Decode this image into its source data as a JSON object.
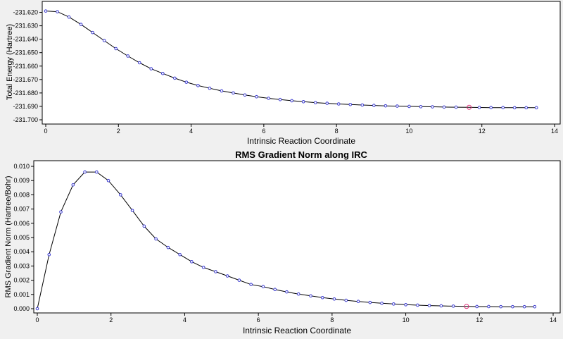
{
  "window": {
    "background": "#f0f0f0"
  },
  "chart_data": [
    {
      "type": "line",
      "title": "",
      "xlabel": "Intrinsic Reaction Coordinate",
      "ylabel": "Total Energy (Hartree)",
      "xlim": [
        0,
        14
      ],
      "ylim": [
        -231.7,
        -231.615
      ],
      "xticks": [
        0,
        2,
        4,
        6,
        8,
        10,
        12,
        14
      ],
      "xtick_labels": [
        "0",
        "2",
        "4",
        "6",
        "8",
        "10",
        "12",
        "14"
      ],
      "yticks": [
        -231.62,
        -231.63,
        -231.64,
        -231.65,
        -231.66,
        -231.67,
        -231.68,
        -231.69,
        -231.7
      ],
      "ytick_labels": [
        "-231.620",
        "-231.630",
        "-231.640",
        "-231.650",
        "-231.660",
        "-231.670",
        "-231.680",
        "-231.690",
        "-231.700"
      ],
      "grid": false,
      "line_color": "#000000",
      "marker_color": "#3a3ad0",
      "highlight_color": "#e0307a",
      "highlight_x": 11.65,
      "series": [
        {
          "x": [
            0.0,
            0.32,
            0.64,
            0.97,
            1.29,
            1.61,
            1.93,
            2.26,
            2.58,
            2.9,
            3.22,
            3.55,
            3.87,
            4.19,
            4.51,
            4.84,
            5.16,
            5.48,
            5.8,
            6.13,
            6.45,
            6.77,
            7.09,
            7.42,
            7.74,
            8.06,
            8.38,
            8.71,
            9.03,
            9.35,
            9.67,
            10.0,
            10.32,
            10.64,
            10.96,
            11.29,
            11.65,
            11.93,
            12.25,
            12.58,
            12.9,
            13.22,
            13.5
          ],
          "y": [
            -231.619,
            -231.6195,
            -231.6235,
            -231.629,
            -231.635,
            -231.641,
            -231.647,
            -231.6525,
            -231.6575,
            -231.662,
            -231.6655,
            -231.669,
            -231.672,
            -231.6745,
            -231.6765,
            -231.6785,
            -231.68,
            -231.6815,
            -231.6828,
            -231.684,
            -231.6849,
            -231.6858,
            -231.6865,
            -231.6872,
            -231.6877,
            -231.6882,
            -231.6886,
            -231.689,
            -231.6893,
            -231.6896,
            -231.6898,
            -231.69,
            -231.6902,
            -231.6903,
            -231.6905,
            -231.6906,
            -231.6907,
            -231.6908,
            -231.6909,
            -231.6909,
            -231.691,
            -231.691,
            -231.691
          ]
        }
      ]
    },
    {
      "type": "line",
      "title": "RMS Gradient Norm along IRC",
      "xlabel": "Intrinsic Reaction Coordinate",
      "ylabel": "RMS Gradient Norm (Hartree/Bohr)",
      "xlim": [
        0,
        14
      ],
      "ylim": [
        0,
        0.0101
      ],
      "xticks": [
        0,
        2,
        4,
        6,
        8,
        10,
        12,
        14
      ],
      "xtick_labels": [
        "0",
        "2",
        "4",
        "6",
        "8",
        "10",
        "12",
        "14"
      ],
      "yticks": [
        0.0,
        0.001,
        0.002,
        0.003,
        0.004,
        0.005,
        0.006,
        0.007,
        0.008,
        0.009,
        0.01
      ],
      "ytick_labels": [
        "0.000",
        "0.001",
        "0.002",
        "0.003",
        "0.004",
        "0.005",
        "0.006",
        "0.007",
        "0.008",
        "0.009",
        "0.010"
      ],
      "grid": false,
      "line_color": "#000000",
      "marker_color": "#3a3ad0",
      "highlight_color": "#e0307a",
      "highlight_x": 11.65,
      "series": [
        {
          "x": [
            0.0,
            0.32,
            0.64,
            0.97,
            1.29,
            1.61,
            1.93,
            2.26,
            2.58,
            2.9,
            3.22,
            3.55,
            3.87,
            4.19,
            4.51,
            4.84,
            5.16,
            5.48,
            5.8,
            6.13,
            6.45,
            6.77,
            7.09,
            7.42,
            7.74,
            8.06,
            8.38,
            8.71,
            9.03,
            9.35,
            9.67,
            10.0,
            10.32,
            10.64,
            10.96,
            11.29,
            11.65,
            11.93,
            12.25,
            12.58,
            12.9,
            13.22,
            13.5
          ],
          "y": [
            0.0,
            0.0038,
            0.0068,
            0.0087,
            0.0096,
            0.0096,
            0.009,
            0.008,
            0.0069,
            0.0058,
            0.0049,
            0.0043,
            0.0038,
            0.0033,
            0.0029,
            0.0026,
            0.0023,
            0.002,
            0.0017,
            0.00155,
            0.00135,
            0.00118,
            0.00103,
            0.0009,
            0.00078,
            0.00068,
            0.00059,
            0.00051,
            0.00044,
            0.00038,
            0.00033,
            0.00028,
            0.00025,
            0.00022,
            0.0002,
            0.00018,
            0.00016,
            0.00015,
            0.00015,
            0.00014,
            0.00014,
            0.00014,
            0.00014
          ]
        }
      ]
    }
  ]
}
